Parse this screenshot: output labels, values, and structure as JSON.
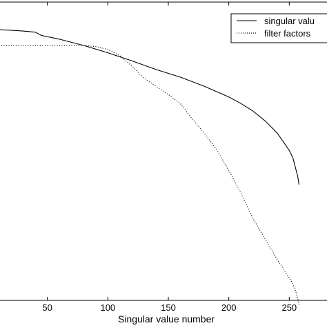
{
  "chart_data": {
    "type": "line",
    "xlabel": "Singular value number",
    "ylabel": "",
    "title": "",
    "xlim": [
      0,
      300
    ],
    "ylim": [
      0,
      1.1
    ],
    "x_ticks": [
      50,
      100,
      150,
      200,
      250
    ],
    "x_tick_labels": [
      "50",
      "100",
      "150",
      "200",
      "250"
    ],
    "grid": false,
    "legend_position": "top-right",
    "series": [
      {
        "name": "singular valu",
        "style": "solid",
        "color": "#000000",
        "x": [
          0,
          20,
          30,
          40,
          45,
          60,
          80,
          100,
          120,
          140,
          160,
          180,
          200,
          210,
          220,
          230,
          240,
          245,
          250,
          253,
          255,
          257,
          258
        ],
        "y": [
          1.0,
          0.996,
          0.993,
          0.989,
          0.977,
          0.963,
          0.94,
          0.913,
          0.883,
          0.851,
          0.823,
          0.789,
          0.75,
          0.726,
          0.698,
          0.662,
          0.617,
          0.585,
          0.553,
          0.525,
          0.491,
          0.457,
          0.427
        ]
      },
      {
        "name": "filter factors",
        "style": "dotted",
        "color": "#000000",
        "x": [
          0,
          20,
          40,
          60,
          80,
          90,
          100,
          110,
          120,
          130,
          140,
          150,
          160,
          170,
          180,
          190,
          200,
          210,
          220,
          230,
          240,
          245,
          250,
          253,
          255,
          257,
          258
        ],
        "y": [
          0.94,
          0.94,
          0.94,
          0.94,
          0.94,
          0.936,
          0.925,
          0.902,
          0.864,
          0.819,
          0.789,
          0.759,
          0.725,
          0.668,
          0.615,
          0.555,
          0.479,
          0.396,
          0.302,
          0.226,
          0.151,
          0.117,
          0.083,
          0.06,
          0.038,
          0.008,
          -0.015
        ]
      }
    ]
  }
}
